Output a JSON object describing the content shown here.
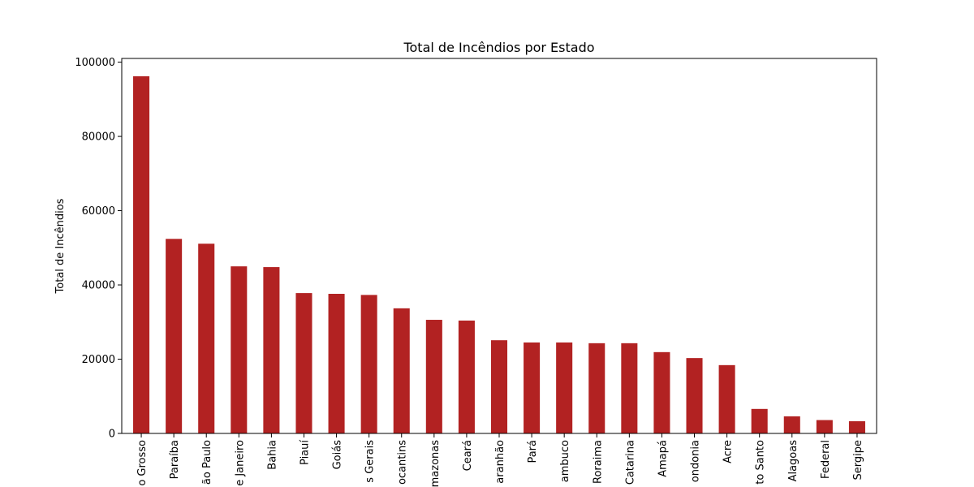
{
  "chart_data": {
    "type": "bar",
    "title": "Total de Incêndios por Estado",
    "xlabel": "",
    "ylabel": "Total de Incêndios",
    "ylim": [
      0,
      101000
    ],
    "yticks": [
      0,
      20000,
      40000,
      60000,
      80000,
      100000
    ],
    "grid": false,
    "legend": "none",
    "bar_color": "#b22222",
    "categories": [
      "o Grosso",
      "Paraíba",
      "ão Paulo",
      "e Janeiro",
      "Bahia",
      "Piauí",
      "Goiás",
      "s Gerais",
      "ocantins",
      "mazonas",
      "Ceará",
      "aranhão",
      "Pará",
      "ambuco",
      "Roraima",
      "Catarina",
      "Amapá",
      "ondonia",
      "Acre",
      "to Santo",
      "Alagoas",
      "Federal",
      "Sergipe"
    ],
    "values": [
      96200,
      52400,
      51100,
      45000,
      44800,
      37800,
      37600,
      37300,
      33700,
      30600,
      30400,
      25100,
      24500,
      24500,
      24300,
      24300,
      21900,
      20300,
      18400,
      6600,
      4600,
      3600,
      3300
    ]
  }
}
